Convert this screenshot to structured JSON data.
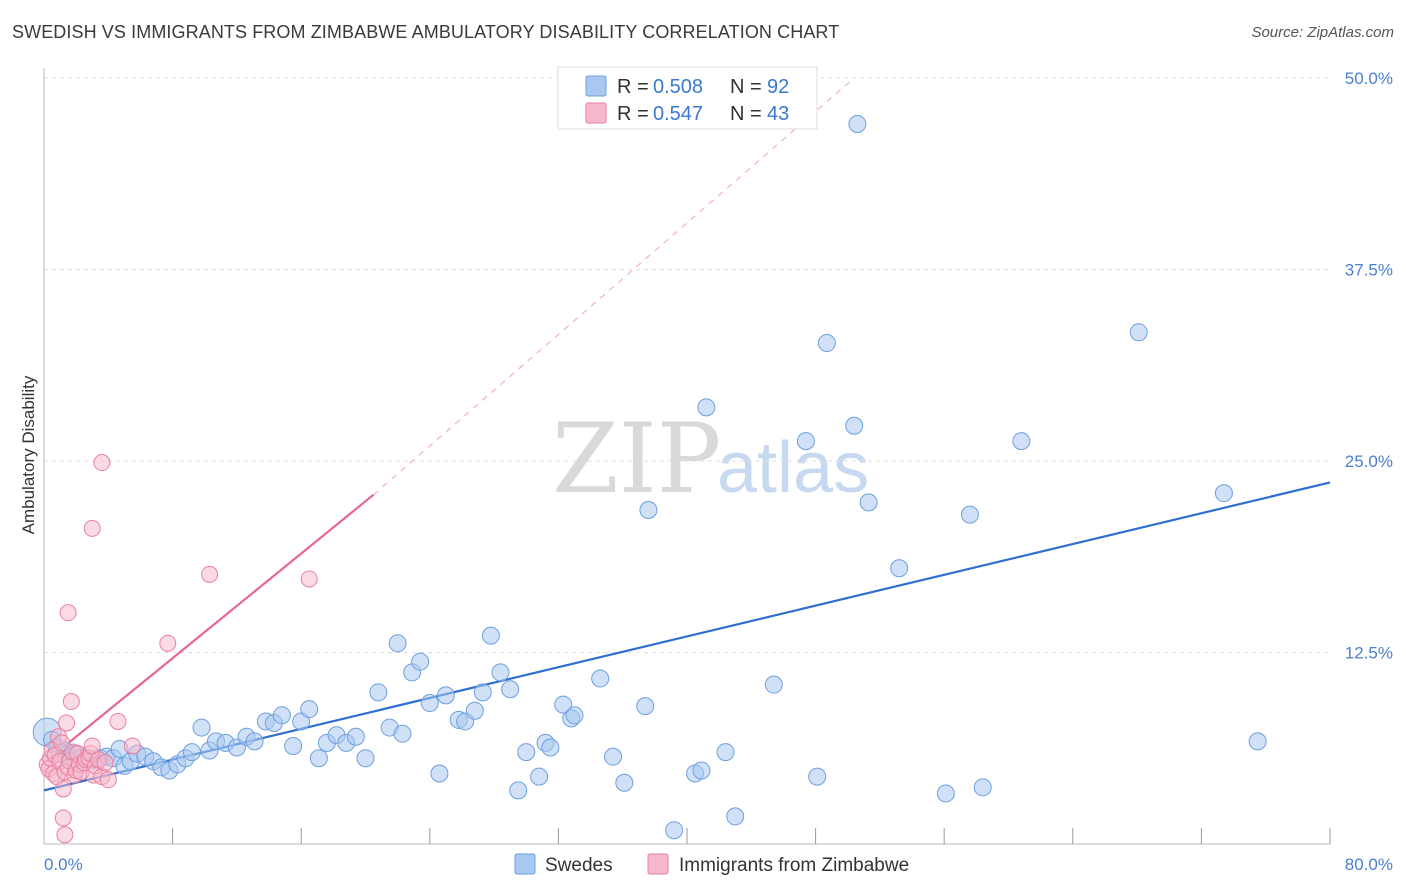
{
  "title": "SWEDISH VS IMMIGRANTS FROM ZIMBABWE AMBULATORY DISABILITY CORRELATION CHART",
  "source": "Source: ZipAtlas.com",
  "watermark": {
    "part1": "ZIP",
    "part2": "atlas"
  },
  "legend_top": [
    {
      "r_label": "R =",
      "r_value": "0.508",
      "n_label": "N =",
      "n_value": "92"
    },
    {
      "r_label": "R =",
      "r_value": "0.547",
      "n_label": "N =",
      "n_value": "43"
    }
  ],
  "legend_bottom": [
    "Swedes",
    "Immigrants from Zimbabwe"
  ],
  "colors": {
    "blue_fill": "#a9c8f0",
    "blue_stroke": "#6e9fe0",
    "blue_line": "#2f6fd0",
    "pink_fill": "#f6b8ca",
    "pink_stroke": "#ea7fa0",
    "pink_line": "#e8668f",
    "axis_text": "#4a7fd0",
    "grid": "#dddddd"
  },
  "chart_data": {
    "type": "scatter",
    "title": "SWEDISH VS IMMIGRANTS FROM ZIMBABWE AMBULATORY DISABILITY CORRELATION CHART",
    "xlabel": "",
    "ylabel": "Ambulatory Disability",
    "xlim": [
      0,
      80
    ],
    "ylim": [
      0,
      50
    ],
    "x_tick_labels": [
      "0.0%",
      "80.0%"
    ],
    "y_ticks": [
      12.5,
      25.0,
      37.5,
      50.0
    ],
    "y_tick_labels": [
      "12.5%",
      "25.0%",
      "37.5%",
      "50.0%"
    ],
    "grid": "horizontal dashed",
    "legend_placement": "top-center",
    "series": [
      {
        "name": "Swedes",
        "R": 0.508,
        "N": 92,
        "trend": {
          "x": [
            0,
            80
          ],
          "y": [
            3.5,
            23.6
          ]
        },
        "points": [
          [
            0.2,
            7.3
          ],
          [
            0.5,
            6.8
          ],
          [
            0.8,
            6.3
          ],
          [
            1.0,
            5.9
          ],
          [
            1.3,
            6.1
          ],
          [
            1.6,
            5.7
          ],
          [
            2.0,
            5.9
          ],
          [
            2.3,
            5.6
          ],
          [
            2.7,
            5.6
          ],
          [
            3.1,
            5.5
          ],
          [
            3.5,
            5.6
          ],
          [
            3.9,
            5.7
          ],
          [
            4.3,
            5.6
          ],
          [
            4.7,
            6.2
          ],
          [
            5.0,
            5.1
          ],
          [
            5.4,
            5.4
          ],
          [
            5.8,
            5.9
          ],
          [
            6.3,
            5.7
          ],
          [
            6.8,
            5.4
          ],
          [
            7.3,
            5.0
          ],
          [
            7.8,
            4.8
          ],
          [
            8.3,
            5.2
          ],
          [
            8.8,
            5.6
          ],
          [
            9.2,
            6.0
          ],
          [
            9.8,
            7.6
          ],
          [
            10.3,
            6.1
          ],
          [
            10.7,
            6.7
          ],
          [
            11.3,
            6.6
          ],
          [
            12.0,
            6.3
          ],
          [
            12.6,
            7.0
          ],
          [
            13.1,
            6.7
          ],
          [
            13.8,
            8.0
          ],
          [
            14.3,
            7.9
          ],
          [
            14.8,
            8.4
          ],
          [
            15.5,
            6.4
          ],
          [
            16.0,
            8.0
          ],
          [
            16.5,
            8.8
          ],
          [
            17.1,
            5.6
          ],
          [
            17.6,
            6.6
          ],
          [
            18.2,
            7.1
          ],
          [
            18.8,
            6.6
          ],
          [
            19.4,
            7.0
          ],
          [
            20.0,
            5.6
          ],
          [
            20.8,
            9.9
          ],
          [
            21.5,
            7.6
          ],
          [
            22.0,
            13.1
          ],
          [
            22.3,
            7.2
          ],
          [
            22.9,
            11.2
          ],
          [
            23.4,
            11.9
          ],
          [
            24.0,
            9.2
          ],
          [
            24.6,
            4.6
          ],
          [
            25.0,
            9.7
          ],
          [
            25.8,
            8.1
          ],
          [
            26.2,
            8.0
          ],
          [
            26.8,
            8.7
          ],
          [
            27.3,
            9.9
          ],
          [
            27.8,
            13.6
          ],
          [
            28.4,
            11.2
          ],
          [
            29.0,
            10.1
          ],
          [
            29.5,
            3.5
          ],
          [
            30.0,
            6.0
          ],
          [
            30.8,
            4.4
          ],
          [
            31.2,
            6.6
          ],
          [
            31.5,
            6.3
          ],
          [
            32.3,
            9.1
          ],
          [
            32.8,
            8.2
          ],
          [
            33.0,
            8.4
          ],
          [
            34.6,
            10.8
          ],
          [
            35.4,
            5.7
          ],
          [
            36.1,
            4.0
          ],
          [
            37.4,
            9.0
          ],
          [
            37.6,
            21.8
          ],
          [
            39.2,
            0.9
          ],
          [
            40.5,
            4.6
          ],
          [
            40.9,
            4.8
          ],
          [
            41.2,
            28.5
          ],
          [
            42.4,
            6.0
          ],
          [
            43.0,
            1.8
          ],
          [
            45.4,
            10.4
          ],
          [
            47.4,
            26.3
          ],
          [
            48.1,
            4.4
          ],
          [
            48.7,
            32.7
          ],
          [
            50.4,
            27.3
          ],
          [
            50.6,
            47.0
          ],
          [
            51.3,
            22.3
          ],
          [
            53.2,
            18.0
          ],
          [
            56.1,
            3.3
          ],
          [
            57.6,
            21.5
          ],
          [
            58.4,
            3.7
          ],
          [
            60.8,
            26.3
          ],
          [
            68.1,
            33.4
          ],
          [
            73.4,
            22.9
          ],
          [
            75.5,
            6.7
          ]
        ]
      },
      {
        "name": "Immigrants from Zimbabwe",
        "R": 0.547,
        "N": 43,
        "trend": {
          "x": [
            0,
            20.5
          ],
          "y": [
            5.3,
            22.8
          ]
        },
        "trend_dashed_extension": {
          "x": [
            20.5,
            50.4
          ],
          "y": [
            22.8,
            50.0
          ]
        },
        "points": [
          [
            0.2,
            5.2
          ],
          [
            0.3,
            4.9
          ],
          [
            0.4,
            5.6
          ],
          [
            0.5,
            6.1
          ],
          [
            0.6,
            4.6
          ],
          [
            0.7,
            5.8
          ],
          [
            0.8,
            4.4
          ],
          [
            0.9,
            7.0
          ],
          [
            1.0,
            5.4
          ],
          [
            1.1,
            6.6
          ],
          [
            1.2,
            3.6
          ],
          [
            1.2,
            1.7
          ],
          [
            1.3,
            0.6
          ],
          [
            1.3,
            4.7
          ],
          [
            1.4,
            7.9
          ],
          [
            1.5,
            15.1
          ],
          [
            1.5,
            5.0
          ],
          [
            1.6,
            5.4
          ],
          [
            1.7,
            9.3
          ],
          [
            1.8,
            6.0
          ],
          [
            1.9,
            4.5
          ],
          [
            2.0,
            4.8
          ],
          [
            2.1,
            5.9
          ],
          [
            2.2,
            5.2
          ],
          [
            2.3,
            4.7
          ],
          [
            2.5,
            5.3
          ],
          [
            2.6,
            5.5
          ],
          [
            2.8,
            5.6
          ],
          [
            2.9,
            5.9
          ],
          [
            3.0,
            6.4
          ],
          [
            3.1,
            4.5
          ],
          [
            3.2,
            5.1
          ],
          [
            3.4,
            5.5
          ],
          [
            3.6,
            4.4
          ],
          [
            3.8,
            5.3
          ],
          [
            3.0,
            20.6
          ],
          [
            3.6,
            24.9
          ],
          [
            4.0,
            4.2
          ],
          [
            4.6,
            8.0
          ],
          [
            5.5,
            6.4
          ],
          [
            7.7,
            13.1
          ],
          [
            10.3,
            17.6
          ],
          [
            16.5,
            17.3
          ]
        ]
      }
    ]
  }
}
